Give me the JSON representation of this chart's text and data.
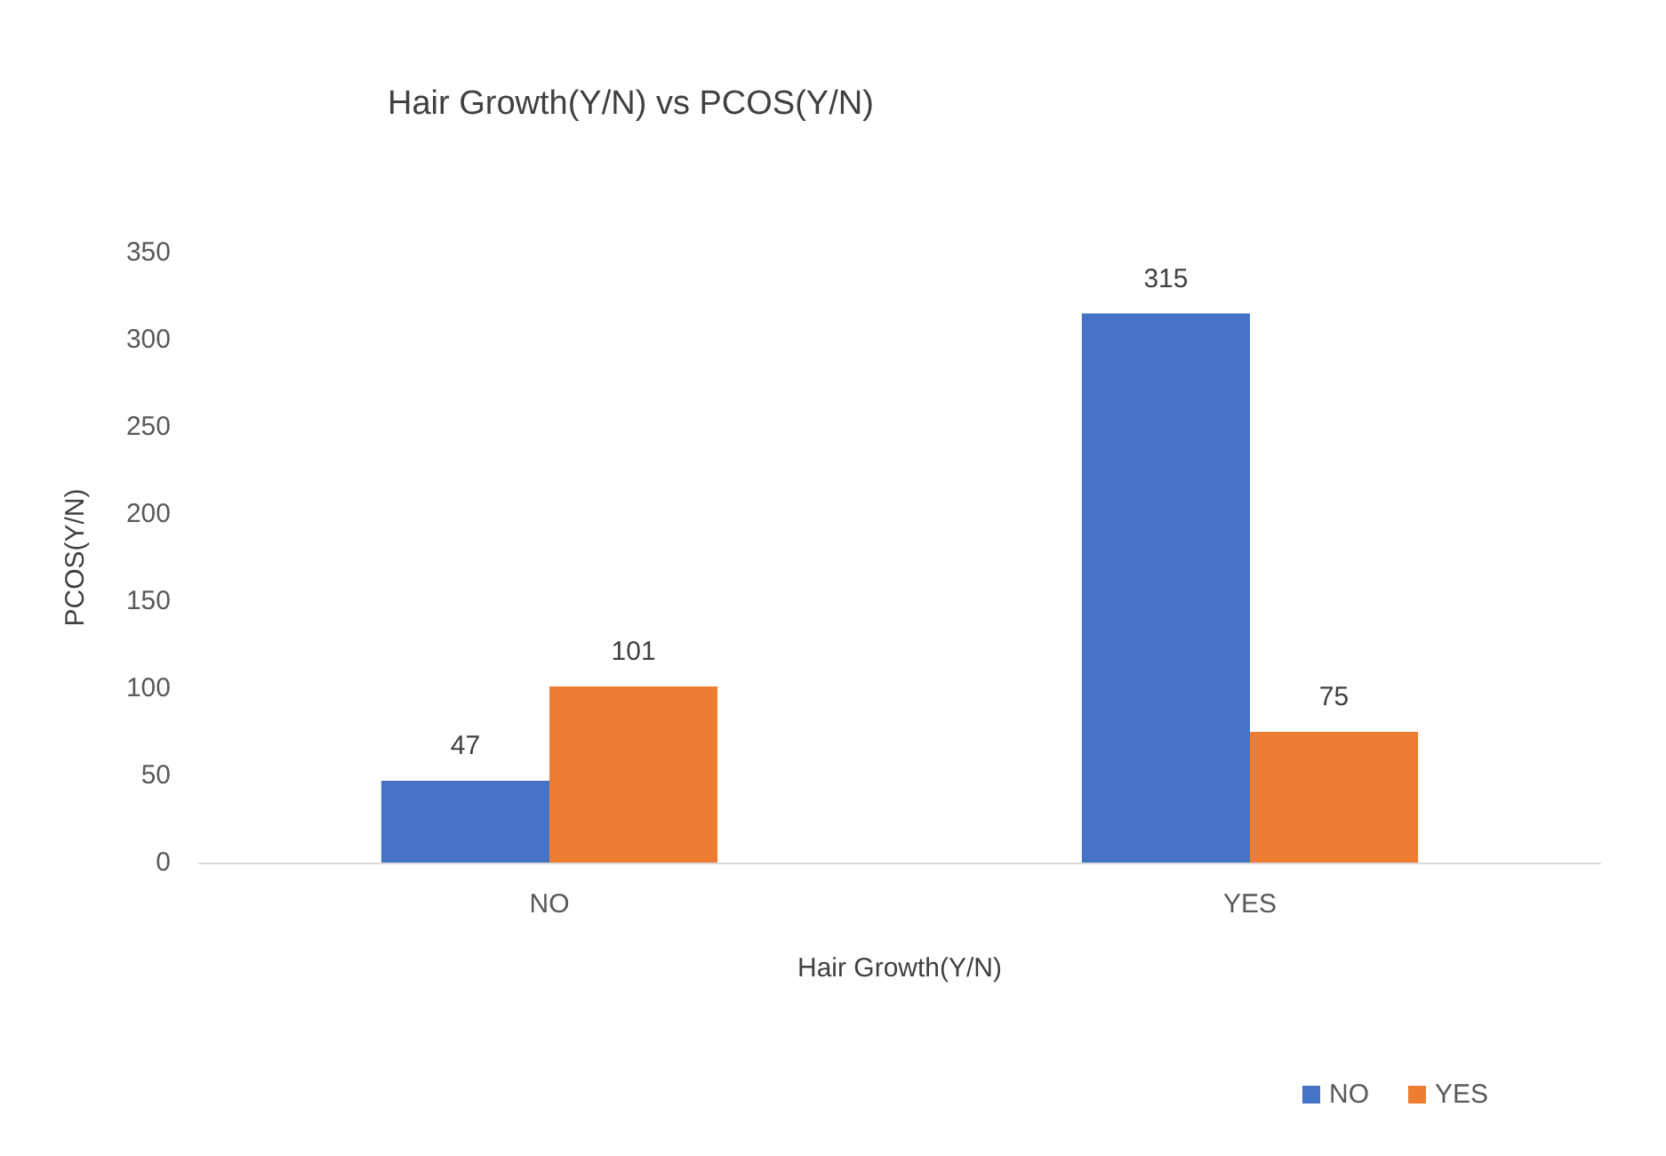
{
  "chart_data": {
    "type": "bar",
    "title": "Hair Growth(Y/N) vs PCOS(Y/N)",
    "xlabel": "Hair Growth(Y/N)",
    "ylabel": "PCOS(Y/N)",
    "categories": [
      "NO",
      "YES"
    ],
    "series": [
      {
        "name": "NO",
        "color": "#4472c4",
        "values": [
          47,
          315
        ]
      },
      {
        "name": "YES",
        "color": "#ed7d31",
        "values": [
          101,
          75
        ]
      }
    ],
    "ylim": [
      0,
      350
    ],
    "yticks": [
      0,
      50,
      100,
      150,
      200,
      250,
      300,
      350
    ],
    "grid": false,
    "legend": "bottom right",
    "data_labels": true
  }
}
